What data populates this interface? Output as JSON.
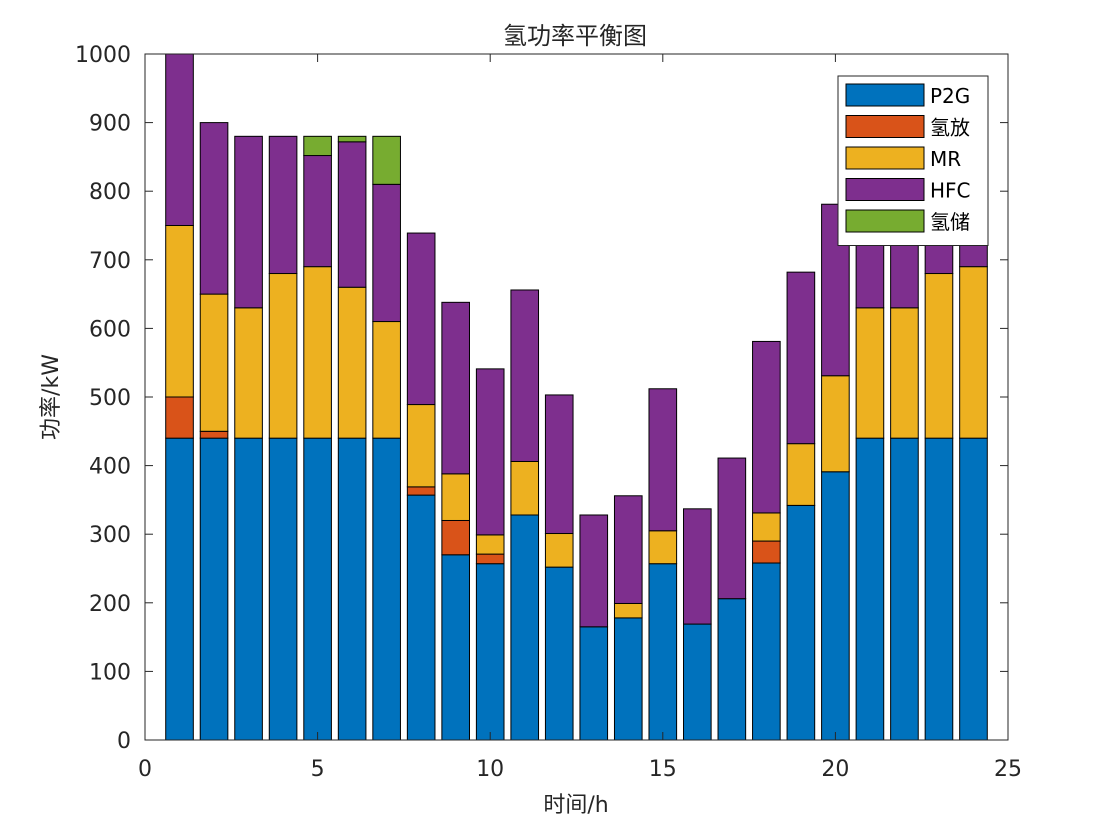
{
  "chart_data": {
    "type": "bar",
    "stacked": true,
    "title": "氢功率平衡图",
    "xlabel": "时间/h",
    "ylabel": "功率/kW",
    "xlim": [
      0,
      25
    ],
    "ylim": [
      0,
      1000
    ],
    "xticks": [
      0,
      5,
      10,
      15,
      20,
      25
    ],
    "yticks": [
      0,
      100,
      200,
      300,
      400,
      500,
      600,
      700,
      800,
      900,
      1000
    ],
    "grid": false,
    "legend_position": "top-right",
    "x": [
      1,
      2,
      3,
      4,
      5,
      6,
      7,
      8,
      9,
      10,
      11,
      12,
      13,
      14,
      15,
      16,
      17,
      18,
      19,
      20,
      21,
      22,
      23,
      24
    ],
    "series": [
      {
        "name": "P2G",
        "color": "#0072BD",
        "values": [
          440,
          440,
          440,
          440,
          440,
          440,
          440,
          357,
          270,
          257,
          328,
          252,
          165,
          178,
          257,
          169,
          206,
          258,
          342,
          391,
          440,
          440,
          440,
          440
        ]
      },
      {
        "name": "氢放",
        "color": "#D95319",
        "values": [
          60,
          10,
          0,
          0,
          0,
          0,
          0,
          12,
          50,
          14,
          0,
          0,
          0,
          0,
          0,
          0,
          0,
          32,
          0,
          0,
          0,
          0,
          0,
          0
        ]
      },
      {
        "name": "MR",
        "color": "#EDB120",
        "values": [
          250,
          200,
          190,
          240,
          250,
          220,
          170,
          120,
          68,
          28,
          78,
          49,
          0,
          21,
          48,
          0,
          0,
          41,
          90,
          140,
          190,
          190,
          240,
          250
        ]
      },
      {
        "name": "HFC",
        "color": "#7E2F8E",
        "values": [
          250,
          250,
          250,
          200,
          162,
          212,
          200,
          250,
          250,
          242,
          250,
          202,
          163,
          157,
          207,
          168,
          205,
          250,
          250,
          250,
          250,
          250,
          250,
          250
        ]
      },
      {
        "name": "氢储",
        "color": "#77AC30",
        "values": [
          0,
          0,
          0,
          0,
          28,
          8,
          70,
          0,
          0,
          0,
          0,
          0,
          0,
          0,
          0,
          0,
          0,
          0,
          0,
          0,
          0,
          0,
          0,
          0
        ]
      }
    ]
  }
}
